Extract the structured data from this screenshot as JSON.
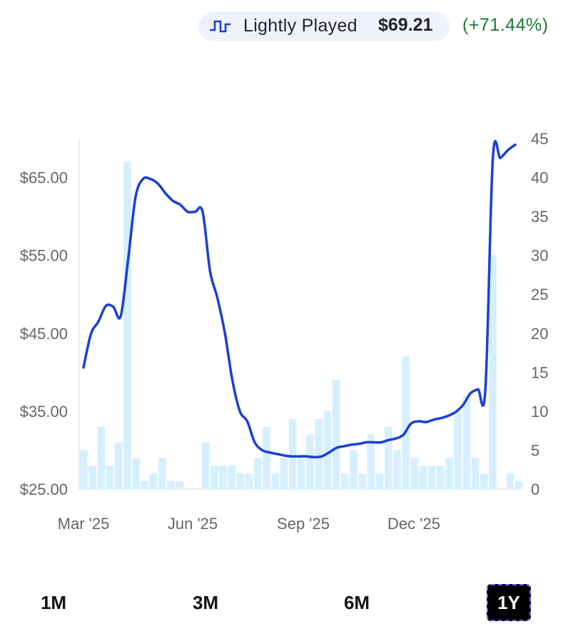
{
  "legend": {
    "series_label": "Lightly Played",
    "price": "$69.21",
    "change": "(+71.44%)",
    "icon": "step-line-icon"
  },
  "colors": {
    "line": "#1a3fd6",
    "volume": "#d6efff",
    "axis_text": "#666666",
    "positive": "#1f7a34"
  },
  "range_buttons": [
    {
      "label": "1M",
      "active": false
    },
    {
      "label": "3M",
      "active": false
    },
    {
      "label": "6M",
      "active": false
    },
    {
      "label": "1Y",
      "active": true
    }
  ],
  "chart_data": {
    "type": "line",
    "x_ticks": [
      "Mar '25",
      "Jun '25",
      "Sep '25",
      "Dec '25"
    ],
    "price_axis": {
      "ticks": [
        "$25.00",
        "$35.00",
        "$45.00",
        "$55.00",
        "$65.00"
      ],
      "range": [
        25,
        70
      ]
    },
    "volume_axis": {
      "ticks": [
        "0",
        "5",
        "10",
        "15",
        "20",
        "25",
        "30",
        "35",
        "40",
        "45"
      ],
      "range": [
        0,
        45
      ]
    },
    "series": [
      {
        "name": "Lightly Played",
        "axis": "price",
        "values": [
          40.6,
          44.9,
          46.5,
          48.5,
          48.4,
          47.2,
          54.5,
          62.5,
          64.8,
          64.8,
          64.2,
          63.0,
          62.0,
          61.5,
          60.6,
          60.6,
          60.6,
          53.0,
          49.5,
          45.0,
          39.0,
          35.0,
          33.7,
          31.0,
          30.0,
          29.7,
          29.5,
          29.3,
          29.2,
          29.2,
          29.2,
          29.1,
          29.2,
          29.7,
          30.3,
          30.5,
          30.7,
          30.8,
          31.0,
          31.0,
          31.0,
          31.3,
          31.5,
          32.0,
          33.4,
          33.7,
          33.6,
          33.9,
          34.1,
          34.4,
          34.9,
          35.8,
          37.3,
          37.8,
          37.9,
          67.5,
          67.5,
          68.5,
          69.2
        ]
      },
      {
        "name": "Volume",
        "axis": "volume",
        "type": "bar",
        "values": [
          5,
          3,
          8,
          3,
          6,
          42,
          4,
          1,
          2,
          4,
          1,
          1,
          0,
          0,
          6,
          3,
          3,
          3,
          2,
          2,
          4,
          8,
          2,
          4,
          9,
          4,
          7,
          9,
          10,
          14,
          2,
          5,
          2,
          7,
          2,
          8,
          5,
          17,
          4,
          3,
          3,
          3,
          4,
          10,
          12,
          4,
          2,
          30,
          0,
          2,
          1
        ]
      }
    ]
  }
}
